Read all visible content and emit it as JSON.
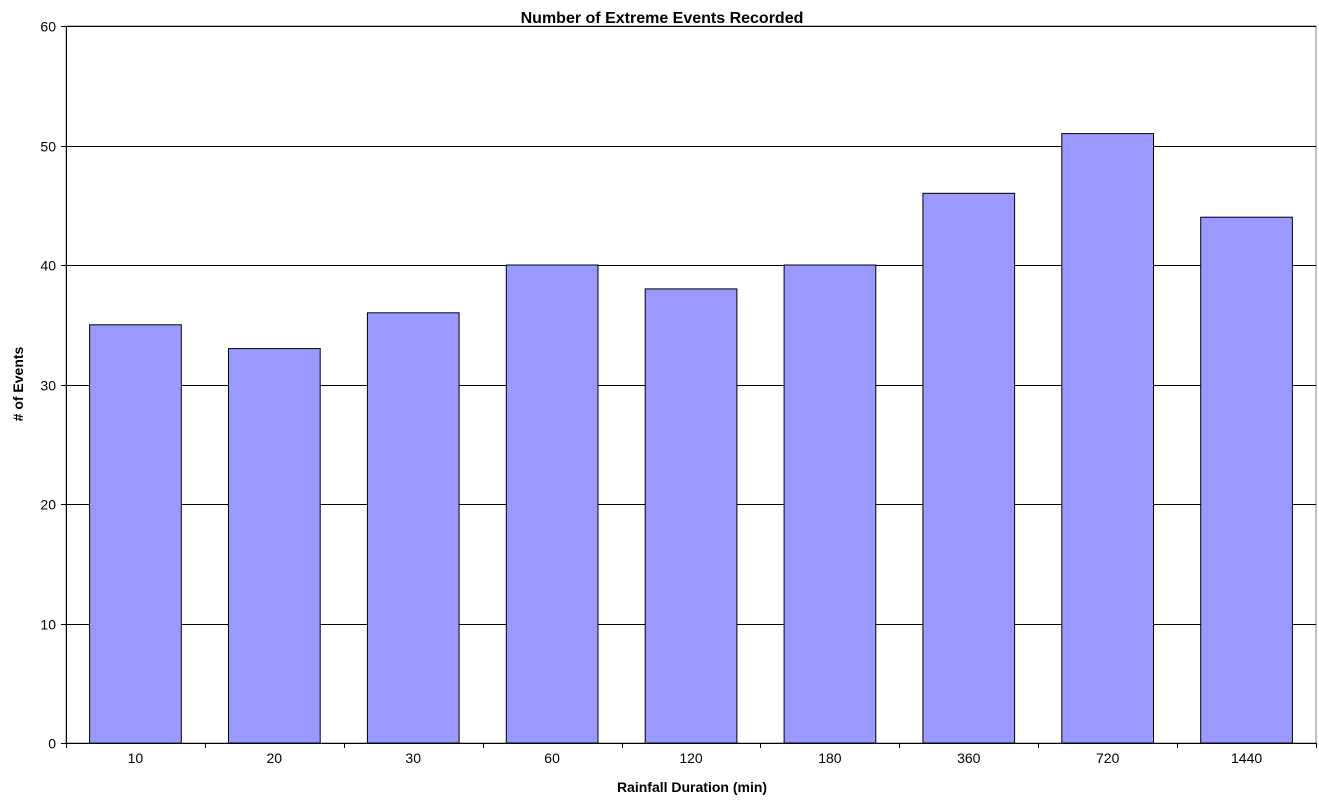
{
  "chart_data": {
    "type": "bar",
    "title": "Number of Extreme Events Recorded",
    "xlabel": "Rainfall Duration (min)",
    "ylabel": "# of Events",
    "categories": [
      "10",
      "20",
      "30",
      "60",
      "120",
      "180",
      "360",
      "720",
      "1440"
    ],
    "values": [
      35,
      33,
      36,
      40,
      38,
      40,
      46,
      51,
      44
    ],
    "ylim": [
      0,
      60
    ],
    "yticks": [
      0,
      10,
      20,
      30,
      40,
      50,
      60
    ],
    "grid": true,
    "legend": "none",
    "colors": {
      "bar": "#9999ff",
      "bar_outline": "#000000"
    }
  }
}
